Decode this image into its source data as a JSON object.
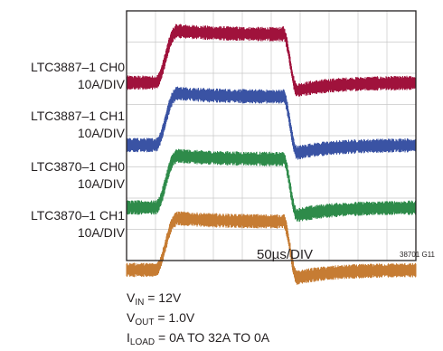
{
  "chart_data": {
    "type": "line",
    "title": "",
    "xlabel": "50µs/DIV",
    "figure_id": "38701 G11",
    "x_divisions": 10,
    "y_divisions": 8,
    "grid": true,
    "series": [
      {
        "name": "LTC3887–1 CH0",
        "scale": "10A/DIV",
        "color": "#a0123c",
        "low_level_div": 0.0,
        "high_level_div": 1.6,
        "step_up_start_div": 1.0,
        "step_up_end_div": 1.7,
        "step_down_start_div": 5.4,
        "step_down_end_div": 5.9,
        "noise_div": 0.23
      },
      {
        "name": "LTC3887–1 CH1",
        "scale": "10A/DIV",
        "color": "#3a53a4",
        "low_level_div": 0.0,
        "high_level_div": 1.6,
        "step_up_start_div": 1.0,
        "step_up_end_div": 1.7,
        "step_down_start_div": 5.4,
        "step_down_end_div": 5.9,
        "noise_div": 0.23
      },
      {
        "name": "LTC3870–1 CH0",
        "scale": "10A/DIV",
        "color": "#2e8b4a",
        "low_level_div": 0.0,
        "high_level_div": 1.6,
        "step_up_start_div": 1.0,
        "step_up_end_div": 1.7,
        "step_down_start_div": 5.4,
        "step_down_end_div": 5.9,
        "noise_div": 0.23
      },
      {
        "name": "LTC3870–1 CH1",
        "scale": "10A/DIV",
        "color": "#c67c33",
        "low_level_div": 0.0,
        "high_level_div": 1.6,
        "step_up_start_div": 1.0,
        "step_up_end_div": 1.7,
        "step_down_start_div": 5.4,
        "step_down_end_div": 5.9,
        "noise_div": 0.23
      }
    ]
  },
  "labels": [
    {
      "name": "LTC3887–1 CH0",
      "scale": "10A/DIV"
    },
    {
      "name": "LTC3887–1 CH1",
      "scale": "10A/DIV"
    },
    {
      "name": "LTC3870–1 CH0",
      "scale": "10A/DIV"
    },
    {
      "name": "LTC3870–1 CH1",
      "scale": "10A/DIV"
    }
  ],
  "notes": {
    "vin": {
      "sym": "V",
      "sub": "IN",
      "rest": " = 12V"
    },
    "vout": {
      "sym": "V",
      "sub": "OUT",
      "rest": " = 1.0V"
    },
    "iload": {
      "sym": "I",
      "sub": "LOAD",
      "rest": " = 0A TO 32A TO 0A"
    }
  }
}
